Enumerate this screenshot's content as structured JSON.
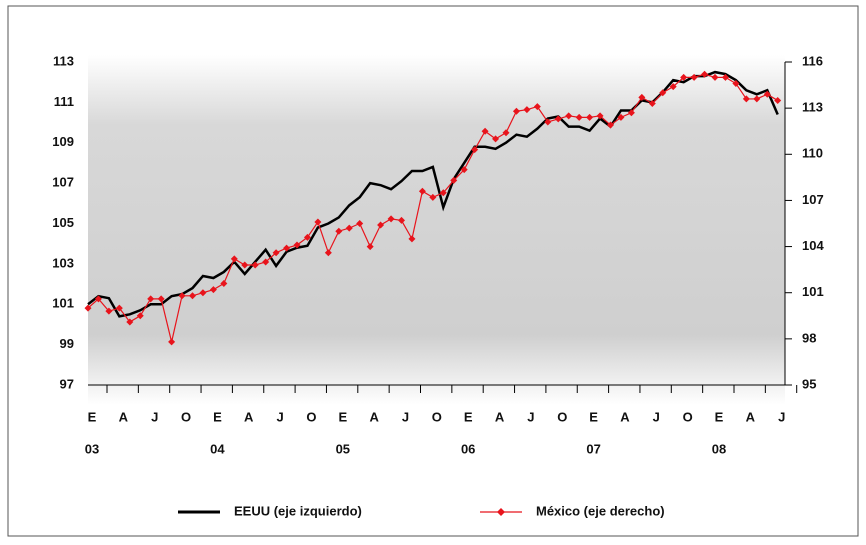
{
  "chart_data": {
    "type": "line",
    "categories": [
      "E",
      null,
      null,
      "A",
      null,
      null,
      "J",
      null,
      null,
      "O",
      null,
      null,
      "E",
      null,
      null,
      "A",
      null,
      null,
      "J",
      null,
      null,
      "O",
      null,
      null,
      "E",
      null,
      null,
      "A",
      null,
      null,
      "J",
      null,
      null,
      "O",
      null,
      null,
      "E",
      null,
      null,
      "A",
      null,
      null,
      "J",
      null,
      null,
      "O",
      null,
      null,
      "E",
      null,
      null,
      "A",
      null,
      null,
      "J",
      null,
      null,
      "O",
      null,
      null,
      "E",
      null,
      null,
      "A",
      null,
      null,
      "J"
    ],
    "year_labels": [
      "03",
      "04",
      "05",
      "06",
      "07",
      "08"
    ],
    "series": [
      {
        "name": "EEUU (eje izquierdo)",
        "color": "#000000",
        "axis": "y",
        "values": [
          101.0,
          101.4,
          101.3,
          100.4,
          100.5,
          100.7,
          101.0,
          101.0,
          101.4,
          101.5,
          101.8,
          102.4,
          102.3,
          102.6,
          103.1,
          102.5,
          103.1,
          103.7,
          102.9,
          103.6,
          103.8,
          103.9,
          104.8,
          105.0,
          105.3,
          105.9,
          106.3,
          107.0,
          106.9,
          106.7,
          107.1,
          107.6,
          107.6,
          107.8,
          105.8,
          107.2,
          108.0,
          108.8,
          108.8,
          108.7,
          109.0,
          109.4,
          109.3,
          109.7,
          110.2,
          110.3,
          109.8,
          109.8,
          109.6,
          110.2,
          109.8,
          110.6,
          110.6,
          111.1,
          111.0,
          111.5,
          112.1,
          112.0,
          112.3,
          112.3,
          112.5,
          112.4,
          112.1,
          111.6,
          111.4,
          111.6,
          110.4
        ]
      },
      {
        "name": "México (eje derecho)",
        "color": "#e8141c",
        "axis": "y2",
        "values": [
          100.0,
          100.6,
          99.8,
          100.0,
          99.1,
          99.5,
          100.6,
          100.6,
          97.8,
          100.8,
          100.8,
          101.0,
          101.2,
          101.6,
          103.2,
          102.8,
          102.8,
          103.0,
          103.6,
          103.9,
          104.1,
          104.6,
          105.6,
          103.6,
          105.0,
          105.2,
          105.5,
          104.0,
          105.4,
          105.8,
          105.7,
          104.5,
          107.6,
          107.2,
          107.5,
          108.3,
          109.0,
          110.3,
          111.5,
          111.0,
          111.4,
          112.8,
          112.9,
          113.1,
          112.1,
          112.3,
          112.5,
          112.4,
          112.4,
          112.5,
          111.9,
          112.4,
          112.7,
          113.7,
          113.3,
          114.0,
          114.4,
          115.0,
          115.0,
          115.2,
          115.0,
          115.0,
          114.6,
          113.6,
          113.6,
          113.9,
          113.5
        ]
      }
    ],
    "ylim": [
      97,
      113
    ],
    "yticks": [
      97,
      99,
      101,
      103,
      105,
      107,
      109,
      111,
      113
    ],
    "y2lim": [
      95,
      116
    ],
    "y2ticks": [
      95,
      98,
      101,
      104,
      107,
      110,
      113,
      116
    ]
  }
}
